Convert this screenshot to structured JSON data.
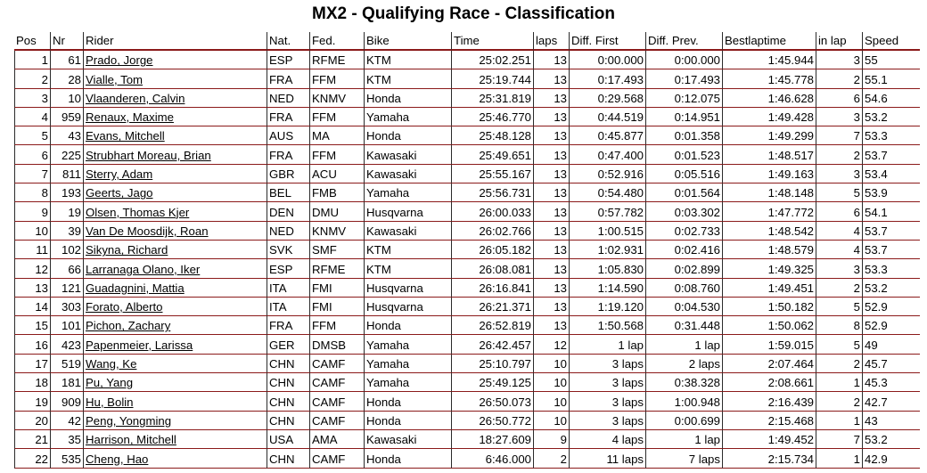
{
  "page": {
    "title": "MX2 - Qualifying Race - Classification"
  },
  "table": {
    "columns": [
      "Pos",
      "Nr",
      "Rider",
      "Nat.",
      "Fed.",
      "Bike",
      "Time",
      "laps",
      "Diff. First",
      "Diff. Prev.",
      "Bestlaptime",
      "in lap",
      "Speed"
    ],
    "rows": [
      [
        "1",
        "61",
        "Prado, Jorge",
        "ESP",
        "RFME",
        "KTM",
        "25:02.251",
        "13",
        "0:00.000",
        "0:00.000",
        "1:45.944",
        "3",
        "55"
      ],
      [
        "2",
        "28",
        "Vialle, Tom",
        "FRA",
        "FFM",
        "KTM",
        "25:19.744",
        "13",
        "0:17.493",
        "0:17.493",
        "1:45.778",
        "2",
        "55.1"
      ],
      [
        "3",
        "10",
        "Vlaanderen, Calvin",
        "NED",
        "KNMV",
        "Honda",
        "25:31.819",
        "13",
        "0:29.568",
        "0:12.075",
        "1:46.628",
        "6",
        "54.6"
      ],
      [
        "4",
        "959",
        "Renaux, Maxime",
        "FRA",
        "FFM",
        "Yamaha",
        "25:46.770",
        "13",
        "0:44.519",
        "0:14.951",
        "1:49.428",
        "3",
        "53.2"
      ],
      [
        "5",
        "43",
        "Evans, Mitchell",
        "AUS",
        "MA",
        "Honda",
        "25:48.128",
        "13",
        "0:45.877",
        "0:01.358",
        "1:49.299",
        "7",
        "53.3"
      ],
      [
        "6",
        "225",
        "Strubhart Moreau, Brian",
        "FRA",
        "FFM",
        "Kawasaki",
        "25:49.651",
        "13",
        "0:47.400",
        "0:01.523",
        "1:48.517",
        "2",
        "53.7"
      ],
      [
        "7",
        "811",
        "Sterry, Adam",
        "GBR",
        "ACU",
        "Kawasaki",
        "25:55.167",
        "13",
        "0:52.916",
        "0:05.516",
        "1:49.163",
        "3",
        "53.4"
      ],
      [
        "8",
        "193",
        "Geerts, Jago",
        "BEL",
        "FMB",
        "Yamaha",
        "25:56.731",
        "13",
        "0:54.480",
        "0:01.564",
        "1:48.148",
        "5",
        "53.9"
      ],
      [
        "9",
        "19",
        "Olsen, Thomas Kjer",
        "DEN",
        "DMU",
        "Husqvarna",
        "26:00.033",
        "13",
        "0:57.782",
        "0:03.302",
        "1:47.772",
        "6",
        "54.1"
      ],
      [
        "10",
        "39",
        "Van De Moosdijk, Roan",
        "NED",
        "KNMV",
        "Kawasaki",
        "26:02.766",
        "13",
        "1:00.515",
        "0:02.733",
        "1:48.542",
        "4",
        "53.7"
      ],
      [
        "11",
        "102",
        "Sikyna, Richard",
        "SVK",
        "SMF",
        "KTM",
        "26:05.182",
        "13",
        "1:02.931",
        "0:02.416",
        "1:48.579",
        "4",
        "53.7"
      ],
      [
        "12",
        "66",
        "Larranaga Olano, Iker",
        "ESP",
        "RFME",
        "KTM",
        "26:08.081",
        "13",
        "1:05.830",
        "0:02.899",
        "1:49.325",
        "3",
        "53.3"
      ],
      [
        "13",
        "121",
        "Guadagnini, Mattia",
        "ITA",
        "FMI",
        "Husqvarna",
        "26:16.841",
        "13",
        "1:14.590",
        "0:08.760",
        "1:49.451",
        "2",
        "53.2"
      ],
      [
        "14",
        "303",
        "Forato, Alberto",
        "ITA",
        "FMI",
        "Husqvarna",
        "26:21.371",
        "13",
        "1:19.120",
        "0:04.530",
        "1:50.182",
        "5",
        "52.9"
      ],
      [
        "15",
        "101",
        "Pichon, Zachary",
        "FRA",
        "FFM",
        "Honda",
        "26:52.819",
        "13",
        "1:50.568",
        "0:31.448",
        "1:50.062",
        "8",
        "52.9"
      ],
      [
        "16",
        "423",
        "Papenmeier, Larissa",
        "GER",
        "DMSB",
        "Yamaha",
        "26:42.457",
        "12",
        "1 lap",
        "1 lap",
        "1:59.015",
        "5",
        "49"
      ],
      [
        "17",
        "519",
        "Wang, Ke",
        "CHN",
        "CAMF",
        "Yamaha",
        "25:10.797",
        "10",
        "3 laps",
        "2 laps",
        "2:07.464",
        "2",
        "45.7"
      ],
      [
        "18",
        "181",
        "Pu, Yang",
        "CHN",
        "CAMF",
        "Yamaha",
        "25:49.125",
        "10",
        "3 laps",
        "0:38.328",
        "2:08.661",
        "1",
        "45.3"
      ],
      [
        "19",
        "909",
        "Hu, Bolin",
        "CHN",
        "CAMF",
        "Honda",
        "26:50.073",
        "10",
        "3 laps",
        "1:00.948",
        "2:16.439",
        "2",
        "42.7"
      ],
      [
        "20",
        "42",
        "Peng, Yongming",
        "CHN",
        "CAMF",
        "Honda",
        "26:50.772",
        "10",
        "3 laps",
        "0:00.699",
        "2:15.468",
        "1",
        "43"
      ],
      [
        "21",
        "35",
        "Harrison, Mitchell",
        "USA",
        "AMA",
        "Kawasaki",
        "18:27.609",
        "9",
        "4 laps",
        "1 lap",
        "1:49.452",
        "7",
        "53.2"
      ],
      [
        "22",
        "535",
        "Cheng, Hao",
        "CHN",
        "CAMF",
        "Honda",
        "6:46.000",
        "2",
        "11 laps",
        "7 laps",
        "2:15.734",
        "1",
        "42.9"
      ]
    ]
  }
}
